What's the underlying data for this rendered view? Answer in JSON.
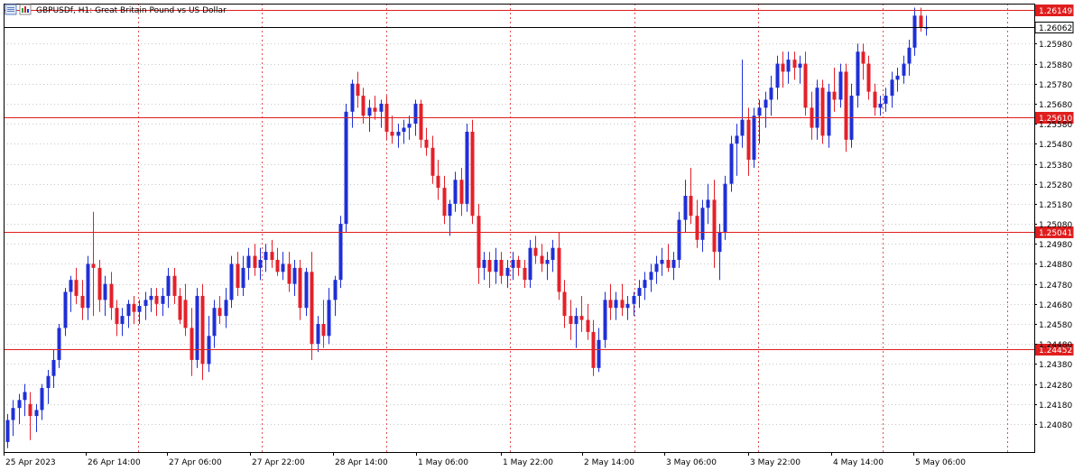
{
  "window": {
    "symbol_title": "GBPUSDf, H1:  Great Britain Pound vs US Dollar"
  },
  "colors": {
    "bull": "#1f2fd6",
    "bear": "#e4202a",
    "grid": "#c8c8c8",
    "vgrid": "#e05050",
    "hline": "#e01e1e",
    "current": "#000000",
    "axis": "#000000"
  },
  "chart_data": {
    "type": "candlestick",
    "symbol": "GBPUSDf",
    "timeframe": "H1",
    "ylim": [
      1.2394,
      1.2618
    ],
    "y_ticks": [
      "1.25980",
      "1.25880",
      "1.25780",
      "1.25680",
      "1.25580",
      "1.25480",
      "1.25380",
      "1.25280",
      "1.25180",
      "1.25080",
      "1.24980",
      "1.24880",
      "1.24780",
      "1.24680",
      "1.24580",
      "1.24480",
      "1.24380",
      "1.24280",
      "1.24180",
      "1.24080"
    ],
    "x_labels": [
      "25 Apr 2023",
      "26 Apr 14:00",
      "27 Apr 06:00",
      "27 Apr 22:00",
      "28 Apr 14:00",
      "1 May 06:00",
      "1 May 22:00",
      "2 May 14:00",
      "3 May 06:00",
      "3 May 22:00",
      "4 May 14:00",
      "5 May 06:00"
    ],
    "horizontal_lines": [
      {
        "price": 1.26149,
        "label": "1.26149",
        "style": "red"
      },
      {
        "price": 1.2561,
        "label": "1.25610",
        "style": "red"
      },
      {
        "price": 1.25041,
        "label": "1.25041",
        "style": "red"
      },
      {
        "price": 1.24452,
        "label": "1.24452",
        "style": "red"
      },
      {
        "price": 1.26062,
        "label": "1.26062",
        "style": "current"
      }
    ],
    "candles": [
      [
        1.2399,
        1.2413,
        1.2396,
        1.241
      ],
      [
        1.241,
        1.242,
        1.2402,
        1.2416
      ],
      [
        1.2416,
        1.2423,
        1.2408,
        1.242
      ],
      [
        1.242,
        1.2428,
        1.2412,
        1.2424
      ],
      [
        1.2418,
        1.2424,
        1.24,
        1.2412
      ],
      [
        1.2412,
        1.2418,
        1.2404,
        1.2415
      ],
      [
        1.2415,
        1.2428,
        1.241,
        1.2426
      ],
      [
        1.2426,
        1.2435,
        1.2418,
        1.2432
      ],
      [
        1.2432,
        1.2445,
        1.2426,
        1.244
      ],
      [
        1.244,
        1.2458,
        1.2436,
        1.2456
      ],
      [
        1.2456,
        1.2476,
        1.2452,
        1.2474
      ],
      [
        1.2474,
        1.2482,
        1.2464,
        1.248
      ],
      [
        1.248,
        1.2486,
        1.2468,
        1.2472
      ],
      [
        1.2472,
        1.248,
        1.246,
        1.2466
      ],
      [
        1.2466,
        1.2492,
        1.246,
        1.2488
      ],
      [
        1.2488,
        1.2514,
        1.2462,
        1.2486
      ],
      [
        1.2486,
        1.249,
        1.2464,
        1.247
      ],
      [
        1.247,
        1.2482,
        1.2462,
        1.2478
      ],
      [
        1.2478,
        1.2484,
        1.246,
        1.2466
      ],
      [
        1.2466,
        1.247,
        1.2452,
        1.2458
      ],
      [
        1.2458,
        1.2466,
        1.2452,
        1.2462
      ],
      [
        1.2462,
        1.247,
        1.2456,
        1.2468
      ],
      [
        1.2468,
        1.2472,
        1.2458,
        1.2464
      ],
      [
        1.2464,
        1.247,
        1.2458,
        1.2467
      ],
      [
        1.2467,
        1.2474,
        1.246,
        1.247
      ],
      [
        1.247,
        1.2476,
        1.2464,
        1.2472
      ],
      [
        1.2472,
        1.2476,
        1.2462,
        1.2468
      ],
      [
        1.2468,
        1.2476,
        1.2462,
        1.2472
      ],
      [
        1.2472,
        1.2486,
        1.2466,
        1.2482
      ],
      [
        1.2482,
        1.2486,
        1.2468,
        1.2472
      ],
      [
        1.2472,
        1.2476,
        1.2458,
        1.246
      ],
      [
        1.247,
        1.2478,
        1.2452,
        1.2456
      ],
      [
        1.2456,
        1.2466,
        1.2432,
        1.244
      ],
      [
        1.244,
        1.2476,
        1.2436,
        1.2472
      ],
      [
        1.2472,
        1.2478,
        1.243,
        1.2438
      ],
      [
        1.2438,
        1.2462,
        1.2434,
        1.2452
      ],
      [
        1.2452,
        1.247,
        1.2446,
        1.2466
      ],
      [
        1.2466,
        1.2472,
        1.2458,
        1.2462
      ],
      [
        1.2462,
        1.2476,
        1.2456,
        1.247
      ],
      [
        1.247,
        1.2492,
        1.2466,
        1.2488
      ],
      [
        1.2488,
        1.2494,
        1.2472,
        1.2476
      ],
      [
        1.2476,
        1.2492,
        1.2472,
        1.2486
      ],
      [
        1.2486,
        1.2496,
        1.248,
        1.2492
      ],
      [
        1.2492,
        1.2498,
        1.2482,
        1.2486
      ],
      [
        1.2486,
        1.2496,
        1.248,
        1.249
      ],
      [
        1.249,
        1.2498,
        1.2484,
        1.2494
      ],
      [
        1.2494,
        1.25,
        1.2486,
        1.249
      ],
      [
        1.249,
        1.2496,
        1.2482,
        1.2484
      ],
      [
        1.2484,
        1.2494,
        1.248,
        1.2488
      ],
      [
        1.2488,
        1.2494,
        1.2474,
        1.2478
      ],
      [
        1.2478,
        1.249,
        1.2472,
        1.2486
      ],
      [
        1.2486,
        1.249,
        1.246,
        1.2466
      ],
      [
        1.2466,
        1.2486,
        1.2462,
        1.2484
      ],
      [
        1.2484,
        1.2494,
        1.244,
        1.2448
      ],
      [
        1.2448,
        1.2462,
        1.2444,
        1.2458
      ],
      [
        1.2458,
        1.247,
        1.2446,
        1.2452
      ],
      [
        1.2452,
        1.2476,
        1.2448,
        1.247
      ],
      [
        1.247,
        1.2482,
        1.2462,
        1.248
      ],
      [
        1.248,
        1.2512,
        1.2476,
        1.2508
      ],
      [
        1.2508,
        1.2568,
        1.2504,
        1.2564
      ],
      [
        1.2564,
        1.258,
        1.2556,
        1.2578
      ],
      [
        1.2578,
        1.2584,
        1.2566,
        1.2572
      ],
      [
        1.2572,
        1.2576,
        1.2558,
        1.2562
      ],
      [
        1.2562,
        1.257,
        1.2554,
        1.2566
      ],
      [
        1.2566,
        1.2572,
        1.256,
        1.2564
      ],
      [
        1.2564,
        1.257,
        1.2556,
        1.2568
      ],
      [
        1.2568,
        1.2572,
        1.255,
        1.2554
      ],
      [
        1.2554,
        1.2562,
        1.2548,
        1.2552
      ],
      [
        1.2552,
        1.2558,
        1.2546,
        1.2554
      ],
      [
        1.2554,
        1.256,
        1.2548,
        1.2556
      ],
      [
        1.2556,
        1.2562,
        1.255,
        1.2558
      ],
      [
        1.2558,
        1.257,
        1.2552,
        1.2568
      ],
      [
        1.2568,
        1.257,
        1.2546,
        1.255
      ],
      [
        1.255,
        1.2556,
        1.2542,
        1.2546
      ],
      [
        1.2546,
        1.2552,
        1.2528,
        1.2532
      ],
      [
        1.2532,
        1.254,
        1.252,
        1.2526
      ],
      [
        1.2526,
        1.2532,
        1.2508,
        1.2512
      ],
      [
        1.2512,
        1.252,
        1.2502,
        1.2518
      ],
      [
        1.2518,
        1.2534,
        1.2514,
        1.253
      ],
      [
        1.253,
        1.2536,
        1.2512,
        1.2518
      ],
      [
        1.2518,
        1.2558,
        1.2514,
        1.2554
      ],
      [
        1.2554,
        1.256,
        1.2508,
        1.2512
      ],
      [
        1.2512,
        1.2518,
        1.2478,
        1.2486
      ],
      [
        1.2486,
        1.2494,
        1.248,
        1.249
      ],
      [
        1.249,
        1.2494,
        1.2476,
        1.2484
      ],
      [
        1.2484,
        1.2496,
        1.2478,
        1.249
      ],
      [
        1.249,
        1.2494,
        1.2478,
        1.2482
      ],
      [
        1.2482,
        1.249,
        1.2476,
        1.2486
      ],
      [
        1.2486,
        1.2494,
        1.248,
        1.249
      ],
      [
        1.249,
        1.2492,
        1.2482,
        1.2486
      ],
      [
        1.2486,
        1.249,
        1.2476,
        1.248
      ],
      [
        1.248,
        1.25,
        1.2476,
        1.2496
      ],
      [
        1.2496,
        1.2502,
        1.2488,
        1.2492
      ],
      [
        1.2492,
        1.2498,
        1.2484,
        1.2488
      ],
      [
        1.2488,
        1.2494,
        1.248,
        1.249
      ],
      [
        1.249,
        1.25,
        1.2484,
        1.2496
      ],
      [
        1.2496,
        1.2504,
        1.247,
        1.2474
      ],
      [
        1.2474,
        1.248,
        1.2456,
        1.2462
      ],
      [
        1.2462,
        1.247,
        1.245,
        1.2458
      ],
      [
        1.2458,
        1.2466,
        1.2446,
        1.2462
      ],
      [
        1.2462,
        1.2472,
        1.2454,
        1.246
      ],
      [
        1.246,
        1.2468,
        1.245,
        1.2454
      ],
      [
        1.2454,
        1.246,
        1.2432,
        1.2436
      ],
      [
        1.2436,
        1.2456,
        1.2434,
        1.245
      ],
      [
        1.245,
        1.2474,
        1.2446,
        1.247
      ],
      [
        1.247,
        1.2478,
        1.246,
        1.2466
      ],
      [
        1.2466,
        1.2474,
        1.246,
        1.247
      ],
      [
        1.247,
        1.2478,
        1.2462,
        1.2466
      ],
      [
        1.2466,
        1.2472,
        1.246,
        1.2468
      ],
      [
        1.2468,
        1.2474,
        1.2462,
        1.2472
      ],
      [
        1.2472,
        1.248,
        1.2466,
        1.2476
      ],
      [
        1.2476,
        1.2484,
        1.247,
        1.248
      ],
      [
        1.248,
        1.2488,
        1.2474,
        1.2484
      ],
      [
        1.2484,
        1.2492,
        1.2478,
        1.2488
      ],
      [
        1.2488,
        1.2496,
        1.2482,
        1.249
      ],
      [
        1.249,
        1.2498,
        1.2484,
        1.2486
      ],
      [
        1.2486,
        1.2494,
        1.248,
        1.249
      ],
      [
        1.249,
        1.2514,
        1.2486,
        1.251
      ],
      [
        1.251,
        1.253,
        1.2504,
        1.2522
      ],
      [
        1.2522,
        1.2536,
        1.2508,
        1.2512
      ],
      [
        1.2512,
        1.252,
        1.2496,
        1.25
      ],
      [
        1.25,
        1.252,
        1.2494,
        1.2516
      ],
      [
        1.2516,
        1.2528,
        1.2508,
        1.252
      ],
      [
        1.252,
        1.253,
        1.2486,
        1.2494
      ],
      [
        1.2494,
        1.2508,
        1.248,
        1.2504
      ],
      [
        1.2504,
        1.2532,
        1.25,
        1.2528
      ],
      [
        1.2528,
        1.2552,
        1.2524,
        1.2548
      ],
      [
        1.2548,
        1.2558,
        1.2532,
        1.2552
      ],
      [
        1.2552,
        1.259,
        1.2546,
        1.256
      ],
      [
        1.256,
        1.2566,
        1.2532,
        1.254
      ],
      [
        1.254,
        1.2566,
        1.2536,
        1.2562
      ],
      [
        1.2562,
        1.257,
        1.2548,
        1.2566
      ],
      [
        1.2566,
        1.2574,
        1.2556,
        1.257
      ],
      [
        1.257,
        1.2582,
        1.2562,
        1.2576
      ],
      [
        1.2576,
        1.2592,
        1.257,
        1.2588
      ],
      [
        1.2588,
        1.2594,
        1.2576,
        1.2584
      ],
      [
        1.2584,
        1.2594,
        1.2578,
        1.259
      ],
      [
        1.259,
        1.2594,
        1.258,
        1.2586
      ],
      [
        1.2586,
        1.2592,
        1.2578,
        1.2588
      ],
      [
        1.2588,
        1.2594,
        1.2562,
        1.2566
      ],
      [
        1.2566,
        1.2574,
        1.255,
        1.2556
      ],
      [
        1.2556,
        1.258,
        1.255,
        1.2576
      ],
      [
        1.2576,
        1.258,
        1.2548,
        1.2552
      ],
      [
        1.2552,
        1.2578,
        1.2546,
        1.2574
      ],
      [
        1.2574,
        1.2586,
        1.2564,
        1.257
      ],
      [
        1.257,
        1.2588,
        1.2566,
        1.2584
      ],
      [
        1.2584,
        1.2588,
        1.2544,
        1.255
      ],
      [
        1.255,
        1.2578,
        1.2546,
        1.2572
      ],
      [
        1.2572,
        1.2598,
        1.2566,
        1.2594
      ],
      [
        1.2594,
        1.2598,
        1.258,
        1.2588
      ],
      [
        1.2588,
        1.2592,
        1.257,
        1.2574
      ],
      [
        1.2574,
        1.2578,
        1.2562,
        1.2566
      ],
      [
        1.2566,
        1.2572,
        1.2562,
        1.2568
      ],
      [
        1.2568,
        1.2576,
        1.2564,
        1.2572
      ],
      [
        1.2572,
        1.2584,
        1.2566,
        1.258
      ],
      [
        1.258,
        1.2586,
        1.2574,
        1.2582
      ],
      [
        1.2582,
        1.2592,
        1.2578,
        1.2588
      ],
      [
        1.2588,
        1.26,
        1.2582,
        1.2596
      ],
      [
        1.2596,
        1.2616,
        1.2592,
        1.2612
      ],
      [
        1.2612,
        1.2616,
        1.2604,
        1.2606
      ],
      [
        1.2606,
        1.2612,
        1.2602,
        1.2606
      ]
    ]
  }
}
